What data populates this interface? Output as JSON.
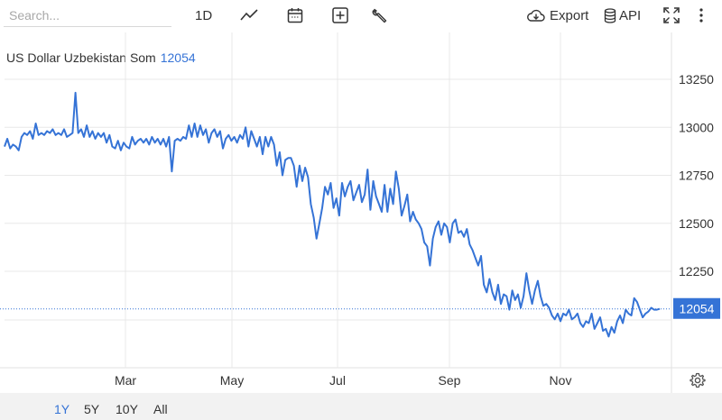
{
  "toolbar": {
    "search_placeholder": "Search...",
    "interval_label": "1D",
    "export_label": "Export",
    "api_label": "API"
  },
  "header": {
    "title": "US Dollar Uzbekistan Som",
    "last_value": "12054"
  },
  "range_buttons": [
    "1Y",
    "5Y",
    "10Y",
    "All"
  ],
  "active_range": "1Y",
  "colors": {
    "line": "#3573d6",
    "accent": "#3573d6",
    "grid": "#e8e8e8",
    "axis_text": "#333333"
  },
  "chart_data": {
    "type": "line",
    "title": "US Dollar Uzbekistan Som",
    "xlabel": "",
    "ylabel": "",
    "x_tick_labels": [
      "Mar",
      "May",
      "Jul",
      "Sep",
      "Nov"
    ],
    "y_ticks": [
      13250,
      13000,
      12750,
      12500,
      12250
    ],
    "ylim": [
      11875,
      13500
    ],
    "grid": true,
    "last_value": 12054,
    "series": [
      {
        "values": [
          12900,
          12940,
          12890,
          12910,
          12900,
          12880,
          12950,
          12970,
          12960,
          12980,
          12940,
          13020,
          12960,
          12970,
          12960,
          12980,
          12970,
          12990,
          12960,
          12970,
          12960,
          12990,
          12950,
          12960,
          12970,
          13180,
          12970,
          12990,
          12950,
          13010,
          12950,
          12980,
          12940,
          12970,
          12950,
          12970,
          12920,
          12960,
          12900,
          12890,
          12930,
          12880,
          12920,
          12900,
          12890,
          12950,
          12910,
          12930,
          12940,
          12920,
          12940,
          12910,
          12950,
          12920,
          12940,
          12910,
          12940,
          12900,
          12950,
          12770,
          12930,
          12940,
          12930,
          12950,
          12940,
          13010,
          12950,
          13020,
          12950,
          13010,
          12960,
          12990,
          12920,
          12970,
          12990,
          12950,
          12980,
          12890,
          12940,
          12960,
          12930,
          12950,
          12920,
          12960,
          12940,
          13000,
          12900,
          12980,
          12940,
          12900,
          12950,
          12860,
          12950,
          12900,
          12950,
          12910,
          12800,
          12870,
          12750,
          12830,
          12840,
          12840,
          12800,
          12690,
          12800,
          12720,
          12790,
          12740,
          12600,
          12530,
          12420,
          12500,
          12580,
          12690,
          12650,
          12710,
          12580,
          12630,
          12540,
          12710,
          12640,
          12690,
          12720,
          12620,
          12660,
          12700,
          12610,
          12650,
          12780,
          12570,
          12720,
          12640,
          12600,
          12560,
          12700,
          12560,
          12680,
          12600,
          12770,
          12680,
          12540,
          12590,
          12650,
          12510,
          12560,
          12520,
          12500,
          12470,
          12400,
          12380,
          12280,
          12420,
          12480,
          12510,
          12440,
          12500,
          12480,
          12400,
          12500,
          12520,
          12450,
          12460,
          12430,
          12470,
          12390,
          12360,
          12320,
          12280,
          12330,
          12180,
          12140,
          12210,
          12140,
          12100,
          12180,
          12080,
          12130,
          12120,
          12050,
          12150,
          12100,
          12130,
          12060,
          12120,
          12240,
          12150,
          12080,
          12150,
          12200,
          12120,
          12070,
          12080,
          12060,
          12020,
          12000,
          12030,
          11990,
          12030,
          12020,
          12050,
          12000,
          12010,
          12030,
          11980,
          11960,
          11990,
          11980,
          12030,
          11950,
          11980,
          12010,
          11940,
          11950,
          11910,
          11960,
          11930,
          11990,
          12020,
          11980,
          12050,
          12030,
          12020,
          12110,
          12090,
          12050,
          12010,
          12030,
          12040,
          12060,
          12050,
          12050,
          12054
        ]
      }
    ]
  }
}
